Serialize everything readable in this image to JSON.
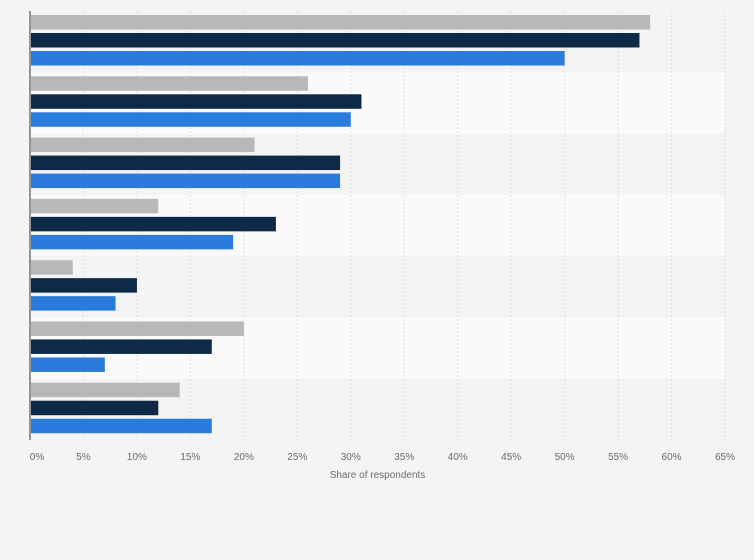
{
  "chart_data": {
    "type": "bar",
    "orientation": "horizontal",
    "title": "",
    "xlabel": "Share of respondents",
    "ylabel": "",
    "xlim": [
      0,
      65
    ],
    "x_ticks": [
      "0%",
      "5%",
      "10%",
      "15%",
      "20%",
      "25%",
      "30%",
      "35%",
      "40%",
      "45%",
      "50%",
      "55%",
      "60%",
      "65%"
    ],
    "grid": true,
    "legend": "none",
    "categories": [
      "",
      "",
      "",
      "",
      "",
      "",
      ""
    ],
    "series": [
      {
        "color": "#b8b8b8",
        "values": [
          58,
          26,
          21,
          12,
          4,
          20,
          14
        ]
      },
      {
        "color": "#0f2a47",
        "values": [
          57,
          31,
          29,
          23,
          10,
          17,
          12
        ]
      },
      {
        "color": "#2b7bdc",
        "values": [
          50,
          30,
          29,
          19,
          8,
          7,
          17
        ]
      }
    ]
  }
}
